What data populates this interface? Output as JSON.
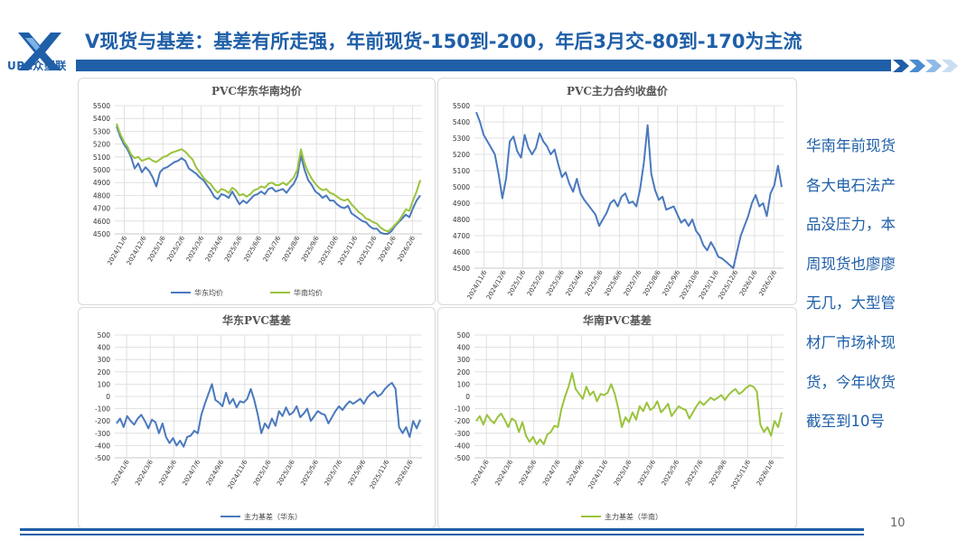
{
  "header": {
    "logo_text": "UPA众塑联",
    "title": "V现货与基差：基差有所走强，年前现货-150到-200，年后3月交-80到-170为主流"
  },
  "side_note": {
    "lines": [
      "华南年前现货",
      "各大电石法产",
      "品没压力，本",
      "周现货也廖廖",
      "无几，大型管",
      "材厂市场补现",
      "货，今年收货",
      "截至到10号"
    ]
  },
  "page_number": "10",
  "colors": {
    "brand": "#1f5fa8",
    "series_blue": "#4a79be",
    "series_green": "#9ac33c"
  },
  "chart_data": [
    {
      "type": "line",
      "title": "PVC华东华南均价",
      "ylim": [
        4500,
        5500
      ],
      "yticks": [
        "5500",
        "5400",
        "5300",
        "5200",
        "5100",
        "5000",
        "4900",
        "4800",
        "4700",
        "4600",
        "4500"
      ],
      "xticks": [
        "2024/11/6",
        "2024/12/6",
        "2025/1/6",
        "2025/2/6",
        "2025/3/6",
        "2025/4/6",
        "2025/5/6",
        "2025/6/6",
        "2025/7/6",
        "2025/8/6",
        "2025/9/6",
        "2025/10/6",
        "2025/11/6",
        "2025/12/6",
        "2026/1/6",
        "2026/2/6"
      ],
      "grid": true,
      "legend": "bottom",
      "series": [
        {
          "name": "华东均价",
          "color": "#4a79be",
          "values": [
            5340,
            5260,
            5200,
            5160,
            5100,
            5010,
            5050,
            4980,
            5020,
            4990,
            4940,
            4870,
            4980,
            5010,
            5020,
            5040,
            5060,
            5070,
            5090,
            5070,
            5010,
            4990,
            4970,
            4940,
            4920,
            4880,
            4840,
            4790,
            4770,
            4810,
            4800,
            4780,
            4830,
            4780,
            4730,
            4760,
            4740,
            4770,
            4800,
            4810,
            4830,
            4810,
            4850,
            4860,
            4830,
            4840,
            4850,
            4820,
            4860,
            4890,
            4950,
            5110,
            5000,
            4920,
            4880,
            4830,
            4810,
            4780,
            4800,
            4760,
            4760,
            4730,
            4710,
            4700,
            4720,
            4660,
            4640,
            4620,
            4600,
            4590,
            4560,
            4540,
            4540,
            4510,
            4490,
            4470,
            4520,
            4560,
            4590,
            4620,
            4650,
            4630,
            4700,
            4760,
            4800
          ]
        },
        {
          "name": "华南均价",
          "color": "#9ac33c",
          "values": [
            5360,
            5280,
            5220,
            5180,
            5120,
            5090,
            5100,
            5070,
            5080,
            5090,
            5070,
            5060,
            5080,
            5100,
            5110,
            5130,
            5140,
            5150,
            5160,
            5140,
            5110,
            5080,
            5020,
            4980,
            4940,
            4910,
            4890,
            4850,
            4820,
            4850,
            4840,
            4820,
            4860,
            4840,
            4800,
            4810,
            4790,
            4810,
            4840,
            4850,
            4870,
            4860,
            4890,
            4900,
            4880,
            4880,
            4900,
            4880,
            4910,
            4940,
            5000,
            5160,
            5050,
            4980,
            4930,
            4890,
            4860,
            4840,
            4850,
            4820,
            4810,
            4790,
            4770,
            4760,
            4770,
            4730,
            4700,
            4670,
            4650,
            4620,
            4610,
            4590,
            4580,
            4550,
            4530,
            4520,
            4540,
            4570,
            4600,
            4640,
            4690,
            4680,
            4760,
            4830,
            4920
          ]
        }
      ]
    },
    {
      "type": "line",
      "title": "PVC主力合约收盘价",
      "ylim": [
        4500,
        5500
      ],
      "yticks": [
        "5500",
        "5400",
        "5300",
        "5200",
        "5100",
        "5000",
        "4900",
        "4800",
        "4700",
        "4600",
        "4500"
      ],
      "xticks": [
        "2024/11/6",
        "2024/12/6",
        "2025/1/6",
        "2025/2/6",
        "2025/3/6",
        "2025/4/6",
        "2025/5/6",
        "2025/6/6",
        "2025/7/6",
        "2025/8/6",
        "2025/9/6",
        "2025/10/6",
        "2025/11/6",
        "2025/12/6",
        "2026/1/6",
        "2026/2/6"
      ],
      "grid": true,
      "series": [
        {
          "name": "",
          "color": "#4a79be",
          "values": [
            5460,
            5400,
            5320,
            5280,
            5240,
            5200,
            5080,
            4930,
            5050,
            5280,
            5310,
            5220,
            5180,
            5320,
            5240,
            5200,
            5240,
            5330,
            5280,
            5250,
            5200,
            5230,
            5140,
            5060,
            5090,
            5020,
            4970,
            5050,
            4960,
            4920,
            4890,
            4860,
            4830,
            4760,
            4800,
            4840,
            4900,
            4920,
            4880,
            4940,
            4960,
            4900,
            4910,
            4880,
            4990,
            5150,
            5380,
            5080,
            4980,
            4920,
            4940,
            4860,
            4870,
            4880,
            4830,
            4780,
            4800,
            4760,
            4800,
            4730,
            4700,
            4640,
            4610,
            4660,
            4620,
            4570,
            4560,
            4540,
            4520,
            4490,
            4600,
            4700,
            4760,
            4820,
            4900,
            4950,
            4880,
            4900,
            4820,
            4960,
            5010,
            5130,
            5000
          ]
        }
      ]
    },
    {
      "type": "line",
      "title": "华东PVC基差",
      "ylim": [
        -500,
        500
      ],
      "yticks": [
        "500",
        "400",
        "300",
        "200",
        "100",
        "0",
        "-100",
        "-200",
        "-300",
        "-400",
        "-500"
      ],
      "xticks": [
        "2024/1/6",
        "2024/3/6",
        "2024/5/6",
        "2024/7/6",
        "2024/9/6",
        "2024/11/6",
        "2025/1/6",
        "2025/3/6",
        "2025/5/6",
        "2025/7/6",
        "2025/9/6",
        "2025/11/6",
        "2026/1/6"
      ],
      "grid": true,
      "legend": "bottom",
      "series": [
        {
          "name": "主力基差（华东）",
          "color": "#4a79be",
          "values": [
            -220,
            -180,
            -250,
            -160,
            -200,
            -230,
            -180,
            -150,
            -200,
            -260,
            -190,
            -210,
            -300,
            -220,
            -330,
            -380,
            -340,
            -400,
            -360,
            -410,
            -330,
            -320,
            -280,
            -300,
            -150,
            -60,
            20,
            100,
            -30,
            -50,
            -80,
            30,
            -60,
            -20,
            -90,
            -40,
            -50,
            -20,
            60,
            -30,
            -150,
            -300,
            -220,
            -260,
            -180,
            -240,
            -120,
            -160,
            -90,
            -150,
            -130,
            -80,
            -170,
            -140,
            -100,
            -200,
            -160,
            -120,
            -140,
            -150,
            -220,
            -170,
            -120,
            -80,
            -110,
            -70,
            -40,
            -60,
            -40,
            -20,
            -60,
            -10,
            20,
            40,
            0,
            20,
            60,
            90,
            110,
            60,
            -250,
            -300,
            -250,
            -330,
            -200,
            -260,
            -190
          ]
        }
      ]
    },
    {
      "type": "line",
      "title": "华南PVC基差",
      "ylim": [
        -500,
        500
      ],
      "yticks": [
        "500",
        "400",
        "300",
        "200",
        "100",
        "0",
        "-100",
        "-200",
        "-300",
        "-400",
        "-500"
      ],
      "xticks": [
        "2024/1/6",
        "2024/3/6",
        "2024/5/6",
        "2024/7/6",
        "2024/9/6",
        "2024/11/6",
        "2025/1/6",
        "2025/3/6",
        "2025/5/6",
        "2025/7/6",
        "2025/9/6",
        "2025/11/6",
        "2026/1/6"
      ],
      "grid": true,
      "legend": "bottom",
      "series": [
        {
          "name": "主力基差（华南）",
          "color": "#9ac33c",
          "values": [
            -200,
            -160,
            -230,
            -150,
            -190,
            -220,
            -170,
            -140,
            -190,
            -250,
            -180,
            -200,
            -290,
            -210,
            -320,
            -370,
            -330,
            -390,
            -350,
            -390,
            -310,
            -290,
            -240,
            -250,
            -100,
            0,
            80,
            190,
            60,
            20,
            -20,
            80,
            10,
            40,
            -40,
            20,
            10,
            30,
            100,
            20,
            -100,
            -250,
            -170,
            -210,
            -130,
            -190,
            -80,
            -120,
            -50,
            -110,
            -90,
            -40,
            -130,
            -100,
            -60,
            -160,
            -120,
            -80,
            -100,
            -110,
            -180,
            -130,
            -80,
            -40,
            -70,
            -40,
            -10,
            -30,
            -10,
            10,
            -30,
            10,
            40,
            60,
            20,
            40,
            70,
            90,
            80,
            40,
            -230,
            -290,
            -250,
            -320,
            -200,
            -250,
            -130
          ]
        }
      ]
    }
  ]
}
